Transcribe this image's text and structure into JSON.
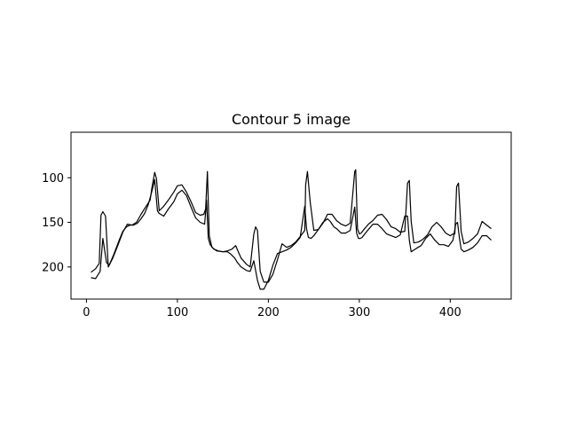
{
  "chart_data": {
    "type": "line",
    "title": "Contour 5 image",
    "xlabel": "",
    "ylabel": "",
    "xlim": [
      -17,
      467
    ],
    "ylim": [
      236,
      49
    ],
    "y_inverted": true,
    "grid": false,
    "xticks": [
      0,
      100,
      200,
      300,
      400
    ],
    "yticks": [
      100,
      150,
      200
    ],
    "line_color": "#000000",
    "series": [
      {
        "x": [
          5,
          10,
          15,
          18,
          22,
          25,
          30,
          36,
          40,
          44,
          48,
          52,
          56,
          60,
          64,
          68,
          72,
          75,
          78,
          80,
          85,
          90,
          96,
          100,
          105,
          110,
          115,
          120,
          125,
          130,
          132,
          134,
          136,
          140,
          145,
          150,
          155,
          158,
          160,
          163,
          166,
          170,
          176,
          180,
          184,
          188,
          191,
          195,
          200,
          205,
          210,
          215,
          220,
          225,
          230,
          235,
          240,
          242,
          244,
          247,
          250,
          255,
          260,
          265,
          268,
          272,
          275,
          280,
          285,
          290,
          295,
          297,
          299,
          301,
          303,
          306,
          310,
          315,
          320,
          325,
          330,
          335,
          340,
          345,
          350,
          353,
          355,
          357,
          360,
          363,
          368,
          373,
          378,
          383,
          388,
          393,
          398,
          403,
          406,
          408,
          410,
          412,
          415,
          420,
          425,
          430,
          435,
          440,
          445
        ],
        "y": [
          212,
          213,
          205,
          168,
          195,
          198,
          186,
          170,
          160,
          155,
          153,
          153,
          151,
          146,
          140,
          130,
          115,
          102,
          137,
          140,
          143,
          135,
          127,
          118,
          114,
          120,
          133,
          145,
          150,
          152,
          125,
          168,
          175,
          180,
          182,
          183,
          183,
          185,
          187,
          190,
          195,
          200,
          204,
          205,
          193,
          215,
          225,
          225,
          215,
          198,
          185,
          183,
          181,
          178,
          173,
          167,
          132,
          157,
          167,
          168,
          165,
          158,
          150,
          146,
          149,
          155,
          157,
          162,
          162,
          159,
          133,
          162,
          168,
          168,
          167,
          163,
          158,
          152,
          152,
          157,
          163,
          165,
          167,
          164,
          143,
          143,
          170,
          183,
          181,
          179,
          176,
          168,
          163,
          170,
          175,
          175,
          177,
          170,
          152,
          150,
          167,
          180,
          183,
          181,
          178,
          173,
          165,
          165,
          170
        ]
      },
      {
        "x": [
          5,
          10,
          14,
          16,
          18,
          21,
          24,
          29,
          34,
          40,
          45,
          50,
          55,
          60,
          65,
          70,
          72,
          75,
          77,
          80,
          85,
          90,
          96,
          100,
          105,
          110,
          115,
          120,
          125,
          129,
          131,
          133,
          135,
          138,
          143,
          150,
          155,
          160,
          164,
          170,
          176,
          180,
          184,
          186,
          188,
          191,
          195,
          200,
          205,
          210,
          215,
          220,
          225,
          230,
          235,
          240,
          241,
          243,
          246,
          250,
          255,
          260,
          265,
          270,
          275,
          280,
          285,
          290,
          295,
          296,
          298,
          300,
          302,
          305,
          310,
          315,
          320,
          325,
          330,
          335,
          340,
          345,
          350,
          353,
          355,
          357,
          360,
          365,
          370,
          375,
          380,
          385,
          390,
          395,
          400,
          403,
          405,
          407,
          409,
          412,
          415,
          420,
          425,
          430,
          435,
          440,
          445
        ],
        "y": [
          206,
          202,
          196,
          142,
          138,
          143,
          200,
          190,
          177,
          161,
          152,
          153,
          150,
          141,
          133,
          125,
          111,
          94,
          101,
          137,
          132,
          125,
          116,
          109,
          108,
          116,
          127,
          139,
          142,
          141,
          135,
          93,
          165,
          178,
          182,
          183,
          182,
          180,
          176,
          190,
          197,
          200,
          163,
          155,
          159,
          205,
          217,
          217,
          208,
          192,
          174,
          178,
          176,
          172,
          166,
          159,
          108,
          93,
          127,
          159,
          158,
          151,
          141,
          141,
          148,
          152,
          154,
          151,
          93,
          91,
          157,
          163,
          162,
          158,
          152,
          148,
          142,
          141,
          147,
          155,
          157,
          161,
          160,
          106,
          103,
          149,
          173,
          172,
          169,
          164,
          155,
          150,
          155,
          162,
          165,
          163,
          163,
          110,
          106,
          160,
          174,
          172,
          168,
          163,
          149,
          153,
          157
        ]
      }
    ]
  }
}
